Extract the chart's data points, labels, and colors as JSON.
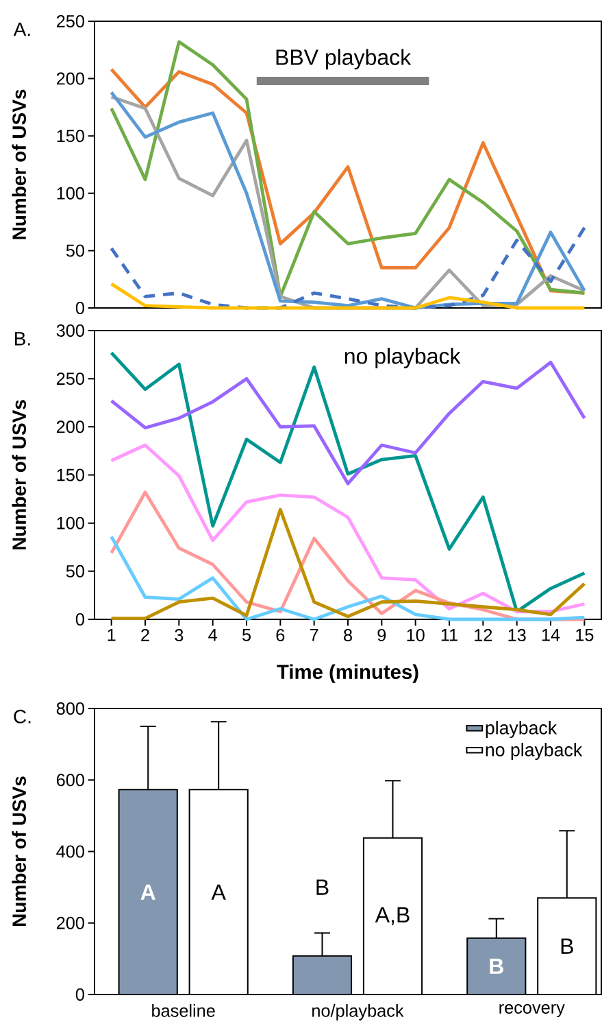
{
  "chart_data": [
    {
      "type": "line",
      "title": "A.",
      "ylabel": "Number of USVs",
      "x": [
        1,
        2,
        3,
        4,
        5,
        6,
        7,
        8,
        9,
        10,
        11,
        12,
        13,
        14,
        15
      ],
      "xlim": [
        0.5,
        15.5
      ],
      "xticks": [
        1,
        2,
        3,
        4,
        5,
        6,
        7,
        8,
        9,
        10,
        11,
        12,
        13,
        14,
        15
      ],
      "ylim": [
        0,
        250
      ],
      "yticks": [
        0,
        50,
        100,
        150,
        200,
        250
      ],
      "tick_labels": "y",
      "annotations": [
        {
          "text": "BBV playback",
          "x": 7.85,
          "y": 198
        }
      ],
      "series": [
        {
          "color": "#808080",
          "x": [
            5.3,
            10.4
          ],
          "values": [
            198,
            198
          ]
        },
        {
          "color": "#ed7d31",
          "values": [
            208,
            175,
            206,
            195,
            170,
            56,
            83,
            123,
            35,
            35,
            70,
            144,
            80,
            15,
            13
          ]
        },
        {
          "color": "#70ad47",
          "values": [
            174,
            112,
            232,
            212,
            182,
            10,
            84,
            56,
            61,
            65,
            112,
            92,
            67,
            16,
            13
          ]
        },
        {
          "color": "#a5a5a5",
          "values": [
            184,
            174,
            113,
            98,
            146,
            10,
            0,
            0,
            0,
            0,
            33,
            2,
            3,
            28,
            15
          ]
        },
        {
          "color": "#5b9bd5",
          "values": [
            188,
            149,
            162,
            170,
            100,
            6,
            5,
            2,
            8,
            0,
            3,
            4,
            4,
            66,
            15
          ]
        },
        {
          "color": "#4472c4",
          "line_style": "dashed",
          "values": [
            52,
            10,
            13,
            3,
            0,
            0,
            13,
            8,
            2,
            0,
            2,
            11,
            59,
            23,
            70
          ]
        },
        {
          "color": "#ffc000",
          "values": [
            21,
            2,
            1,
            0,
            0,
            0,
            0,
            0,
            0,
            0,
            9,
            5,
            0,
            0,
            0
          ]
        }
      ]
    },
    {
      "type": "line",
      "title": "B.",
      "xlabel": "Time (minutes)",
      "ylabel": "Number of USVs",
      "annotations": [
        "no playback"
      ],
      "x": [
        1,
        2,
        3,
        4,
        5,
        6,
        7,
        8,
        9,
        10,
        11,
        12,
        13,
        14,
        15
      ],
      "xlim": [
        0.5,
        15.5
      ],
      "xticks": [
        1,
        2,
        3,
        4,
        5,
        6,
        7,
        8,
        9,
        10,
        11,
        12,
        13,
        14,
        15
      ],
      "ylim": [
        0,
        300
      ],
      "yticks": [
        0,
        50,
        100,
        150,
        200,
        250,
        300
      ],
      "series": [
        {
          "color": "#00968f",
          "values": [
            277,
            239,
            265,
            97,
            187,
            163,
            262,
            151,
            166,
            170,
            73,
            127,
            8,
            32,
            48
          ]
        },
        {
          "color": "#9966ff",
          "values": [
            227,
            199,
            209,
            226,
            250,
            200,
            201,
            141,
            181,
            173,
            214,
            247,
            240,
            267,
            209
          ]
        },
        {
          "color": "#ff99ff",
          "values": [
            165,
            181,
            149,
            82,
            122,
            129,
            127,
            106,
            43,
            41,
            11,
            27,
            8,
            8,
            16
          ]
        },
        {
          "color": "#ff9999",
          "values": [
            69,
            132,
            74,
            57,
            18,
            8,
            84,
            40,
            6,
            30,
            17,
            10,
            0,
            0,
            0
          ]
        },
        {
          "color": "#66ccff",
          "values": [
            86,
            23,
            21,
            43,
            0,
            11,
            0,
            13,
            24,
            5,
            0,
            0,
            0,
            0,
            2
          ]
        },
        {
          "color": "#bf9000",
          "values": [
            1,
            1,
            18,
            22,
            4,
            114,
            18,
            3,
            18,
            19,
            16,
            13,
            10,
            5,
            37
          ]
        }
      ]
    },
    {
      "type": "bar",
      "title": "C.",
      "ylabel": "Number of USVs",
      "categories": [
        "baseline",
        "no/playback",
        "recovery"
      ],
      "ylim": [
        0,
        800
      ],
      "yticks": [
        0,
        200,
        400,
        600,
        800
      ],
      "legend": "top right",
      "series": [
        {
          "name": "playback",
          "color": "#8497b0",
          "values": [
            573,
            108,
            158
          ],
          "errors": [
            [
              573,
              750
            ],
            [
              108,
              172
            ],
            [
              158,
              212
            ]
          ],
          "value_labels": [
            "A",
            "B",
            "B"
          ]
        },
        {
          "name": "no playback",
          "color": "#ffffff",
          "values": [
            573,
            438,
            270
          ],
          "errors": [
            [
              573,
              763
            ],
            [
              438,
              598
            ],
            [
              270,
              458
            ]
          ],
          "value_labels": [
            "A",
            "A,B",
            "B"
          ]
        }
      ]
    }
  ]
}
